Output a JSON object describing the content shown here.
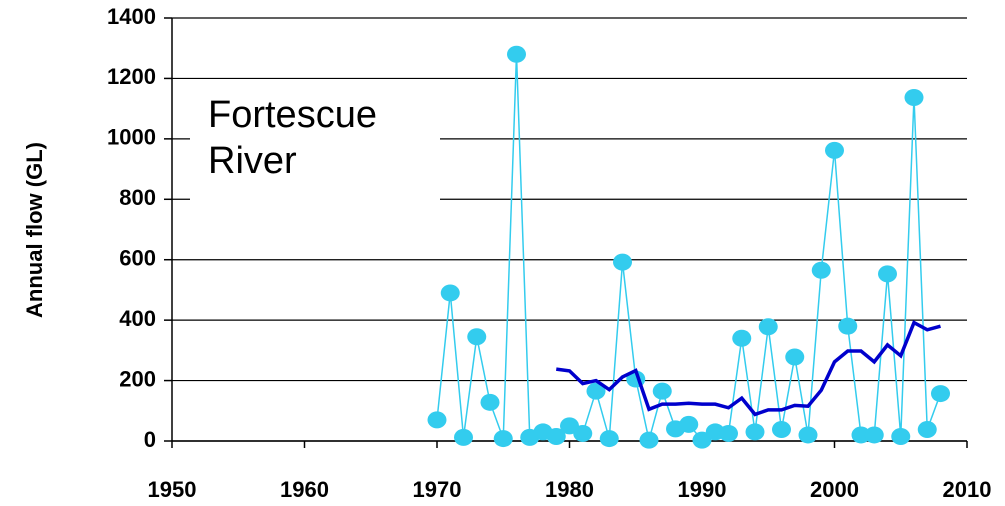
{
  "chart_data": {
    "type": "line",
    "y_label": "Annual flow (GL)",
    "annotation": "Fortescue River",
    "xlim": [
      1950,
      2010
    ],
    "xticks": [
      1950,
      1960,
      1970,
      1980,
      1990,
      2000,
      2010
    ],
    "ylim": [
      0,
      1400
    ],
    "yticks": [
      0,
      200,
      400,
      600,
      800,
      1000,
      1200,
      1400
    ],
    "grid": true,
    "series": [
      {
        "color": "#33ccee",
        "markers": true,
        "x": [
          1970,
          1971,
          1972,
          1973,
          1974,
          1975,
          1976,
          1977,
          1978,
          1979,
          1980,
          1981,
          1982,
          1983,
          1984,
          1985,
          1986,
          1987,
          1988,
          1989,
          1990,
          1991,
          1992,
          1993,
          1994,
          1995,
          1996,
          1997,
          1998,
          1999,
          2000,
          2001,
          2002,
          2003,
          2004,
          2005,
          2006,
          2007,
          2008
        ],
        "values": [
          70,
          490,
          12,
          345,
          128,
          8,
          1280,
          12,
          30,
          15,
          50,
          25,
          165,
          8,
          592,
          205,
          3,
          165,
          40,
          55,
          3,
          30,
          25,
          340,
          30,
          378,
          38,
          278,
          20,
          565,
          962,
          380,
          20,
          20,
          553,
          15,
          1137,
          38,
          157
        ]
      },
      {
        "color": "#0000cc",
        "markers": false,
        "x": [
          1979,
          1980,
          1981,
          1982,
          1983,
          1984,
          1985,
          1986,
          1987,
          1988,
          1989,
          1990,
          1991,
          1992,
          1993,
          1994,
          1995,
          1996,
          1997,
          1998,
          1999,
          2000,
          2001,
          2002,
          2003,
          2004,
          2005,
          2006,
          2007,
          2008
        ],
        "values": [
          238,
          232,
          190,
          200,
          170,
          212,
          233,
          105,
          122,
          122,
          125,
          122,
          122,
          110,
          142,
          88,
          103,
          103,
          118,
          115,
          168,
          262,
          298,
          298,
          262,
          318,
          282,
          392,
          368,
          380
        ]
      }
    ]
  }
}
